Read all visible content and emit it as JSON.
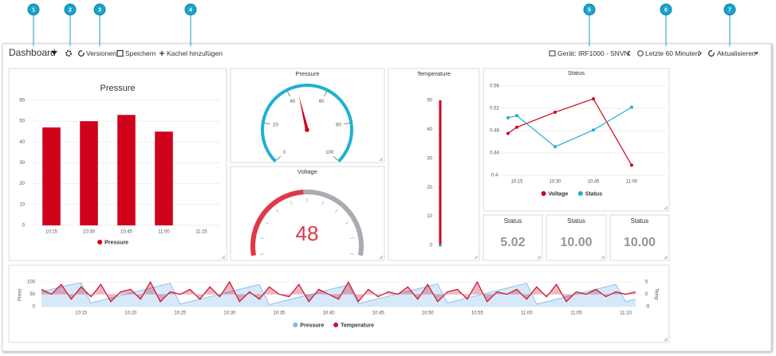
{
  "callouts": [
    "1",
    "2",
    "3",
    "4",
    "5",
    "6",
    "7"
  ],
  "toolbar": {
    "title": "Dashboard",
    "versions": "Versionen",
    "save": "Speichern",
    "add_tile": "Kachel hinzufügen",
    "device": "Gerät: IRF1000 - SNVN",
    "range": "Letzte 60 Minuten",
    "refresh": "Aktualisieren"
  },
  "tiles": [
    {
      "type": "bar",
      "title": "Pressure",
      "categories": [
        "10:15",
        "10:30",
        "10:45",
        "11:00",
        "11:15"
      ],
      "series": [
        {
          "name": "Pressure",
          "color": "#d0021b",
          "values": [
            47,
            50,
            53,
            45,
            null
          ]
        }
      ],
      "ylim": [
        0,
        60
      ],
      "yticks": [
        0,
        10,
        20,
        30,
        40,
        50,
        60
      ],
      "grid": true
    },
    {
      "type": "gauge",
      "title": "Pressure",
      "value": 45,
      "color": "#1fb1d0",
      "ylim": [
        0,
        100
      ],
      "yticks": [
        0,
        20,
        40,
        60,
        80,
        100
      ]
    },
    {
      "type": "solidgauge",
      "title": "Voltage",
      "value": 48,
      "color": "#e0384a",
      "ylim": [
        0,
        100
      ]
    },
    {
      "type": "thermometer",
      "title": "Temperature",
      "value": 50,
      "color": "#d0021b",
      "ylim": [
        0,
        50
      ],
      "yticks": [
        0,
        10,
        20,
        30,
        40,
        50
      ]
    },
    {
      "type": "line",
      "title": "Status",
      "categories": [
        null,
        "10:15",
        "10:30",
        "10:45",
        "11:00"
      ],
      "series": [
        {
          "name": "Voltage",
          "color": "#d0021b",
          "values": [
            0.475,
            0.486,
            0.513,
            0.537,
            0.418
          ]
        },
        {
          "name": "Status",
          "color": "#1eb0cf",
          "values": [
            0.503,
            0.507,
            0.451,
            0.481,
            0.522
          ]
        }
      ],
      "ylim": [
        0.4,
        0.56
      ],
      "yticks": [
        0.4,
        0.44,
        0.48,
        0.52,
        0.56
      ],
      "grid": true
    },
    {
      "type": "value",
      "title": "Status",
      "value": "5.02"
    },
    {
      "type": "value",
      "title": "Status",
      "value": "10.00"
    },
    {
      "type": "value",
      "title": "Status",
      "value": "10.00"
    },
    {
      "type": "combo",
      "ylabel": "Press.",
      "y2label": "Temp",
      "categories": [
        null,
        null,
        null,
        null,
        "10:15",
        null,
        null,
        null,
        null,
        "10:20",
        null,
        null,
        null,
        null,
        "10:25",
        null,
        null,
        null,
        null,
        "10:30",
        null,
        null,
        null,
        null,
        "10:35",
        null,
        null,
        null,
        null,
        "10:40",
        null,
        null,
        null,
        null,
        "10:45",
        null,
        null,
        null,
        null,
        "10:50",
        null,
        null,
        null,
        null,
        "10:55",
        null,
        null,
        null,
        null,
        "11:00",
        null,
        null,
        null,
        null,
        "11:05",
        null,
        null,
        null,
        null,
        "11:10",
        null
      ],
      "series": [
        {
          "name": "Pressure",
          "color": "#7cb5ec",
          "values": [
            60,
            70,
            80,
            90,
            96,
            15,
            25,
            35,
            45,
            55,
            65,
            75,
            85,
            95,
            10,
            20,
            30,
            40,
            50,
            60,
            70,
            80,
            90,
            8,
            18,
            28,
            38,
            48,
            58,
            68,
            78,
            88,
            12,
            22,
            32,
            42,
            52,
            62,
            72,
            82,
            92,
            15,
            25,
            35,
            45,
            55,
            65,
            75,
            85,
            95,
            10,
            20,
            30,
            40,
            50,
            60,
            70,
            80,
            90,
            20,
            30
          ]
        },
        {
          "name": "Temperature",
          "color": "#c8102e",
          "axis": "y2",
          "values": [
            2,
            0,
            4,
            -2,
            3,
            -1,
            4,
            -3,
            1,
            2,
            -2,
            5,
            -3,
            1,
            0,
            2,
            -2,
            3,
            -1,
            5,
            -3,
            1,
            -2,
            3,
            0,
            -1,
            4,
            -3,
            2,
            0,
            -2,
            5,
            -3,
            2,
            -1,
            1,
            0,
            3,
            -2,
            4,
            -3,
            1,
            2,
            -2,
            5,
            -3,
            1,
            0,
            2,
            -2,
            3,
            -1,
            4,
            -3,
            1,
            0,
            2,
            -1,
            1,
            0,
            1
          ]
        }
      ],
      "ylim": [
        0,
        100
      ],
      "yticks": [
        0,
        50,
        100
      ],
      "y2lim": [
        -5,
        5
      ],
      "y2ticks": [
        -5,
        0,
        5
      ]
    }
  ]
}
